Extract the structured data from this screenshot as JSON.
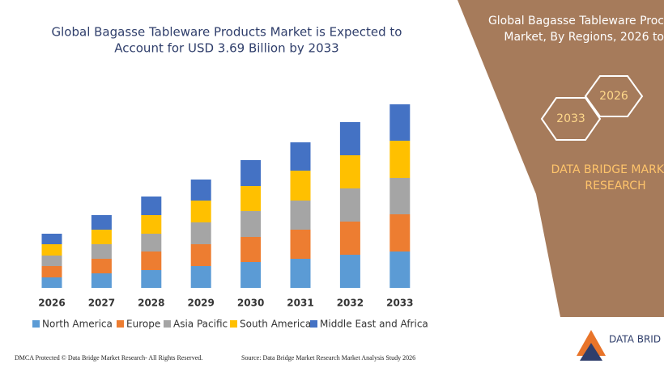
{
  "chart_data": {
    "type": "stacked_bar",
    "title": [
      "Global Bagasse Tableware Products Market is Expected to",
      "Account for USD 3.69 Billion by 2033"
    ],
    "categories": [
      "2026",
      "2027",
      "2028",
      "2029",
      "2030",
      "2031",
      "2032",
      "2033"
    ],
    "series": [
      {
        "name": "North America",
        "color": "#5b9bd5",
        "values": [
          13,
          18,
          22,
          27,
          32,
          36,
          41,
          45
        ]
      },
      {
        "name": "Europe",
        "color": "#ed7d31",
        "values": [
          14,
          18,
          23,
          27,
          31,
          36,
          41,
          46
        ]
      },
      {
        "name": "Asia Pacific",
        "color": "#a5a5a5",
        "values": [
          13,
          18,
          22,
          27,
          32,
          36,
          41,
          45
        ]
      },
      {
        "name": "South America",
        "color": "#ffc000",
        "values": [
          14,
          18,
          23,
          27,
          31,
          37,
          41,
          46
        ]
      },
      {
        "name": "Middle East and Africa",
        "color": "#4472c4",
        "values": [
          13,
          18,
          23,
          26,
          32,
          35,
          41,
          45
        ]
      }
    ]
  },
  "panel": {
    "title": [
      "Global Bagasse Tableware Proc",
      "Market, By Regions, 2026 to"
    ],
    "hexagons": [
      "2033",
      "2026"
    ],
    "brand": [
      "DATA BRIDGE MARK",
      "RESEARCH"
    ],
    "logo": "DATA BRID"
  },
  "footer": {
    "left": "DMCA Protected © Data Bridge Market Research- All Rights Reserved.",
    "right": "Source: Data Bridge Market Research Market Analysis Study 2026"
  }
}
